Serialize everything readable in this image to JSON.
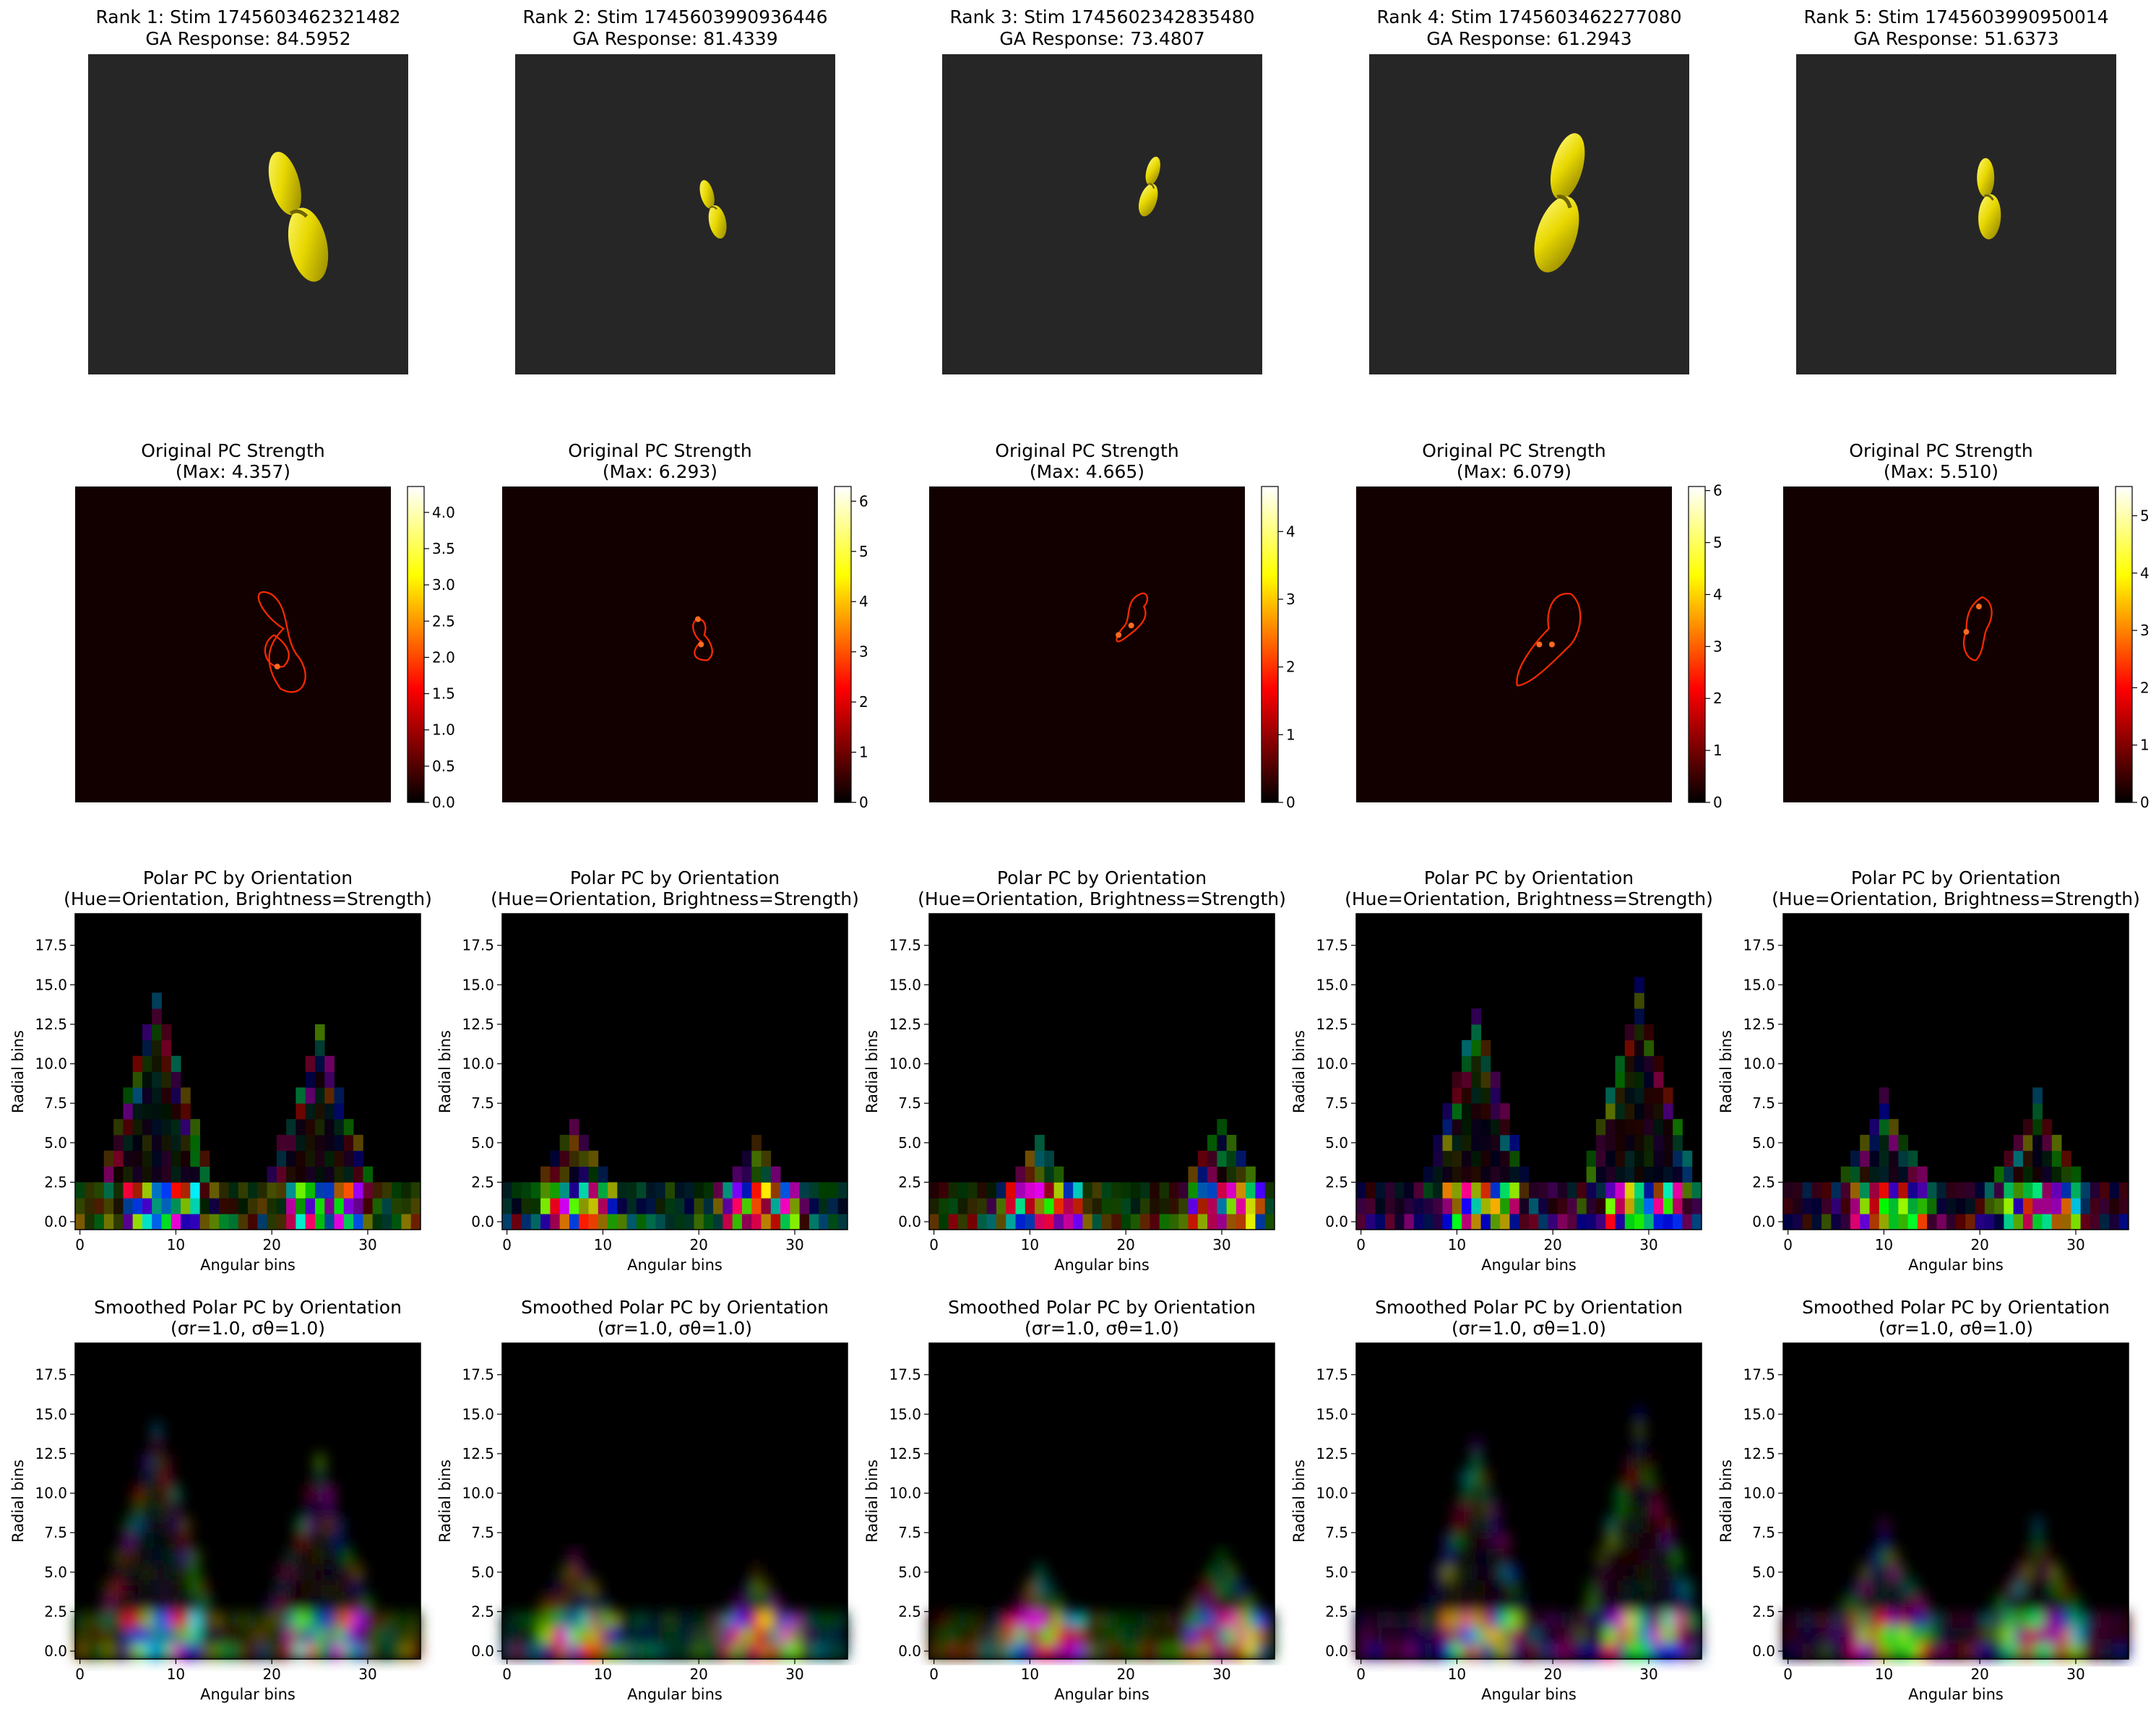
{
  "figure": {
    "panels": [
      {
        "rank_title": "Rank 1: Stim 1745603462321482",
        "response_title": "GA Response: 84.5952",
        "pc_title": "Original PC Strength",
        "pc_max_label": "(Max: 4.357)",
        "pc_max": 4.357
      },
      {
        "rank_title": "Rank 2: Stim 1745603990936446",
        "response_title": "GA Response: 81.4339",
        "pc_title": "Original PC Strength",
        "pc_max_label": "(Max: 6.293)",
        "pc_max": 6.293
      },
      {
        "rank_title": "Rank 3: Stim 1745602342835480",
        "response_title": "GA Response: 73.4807",
        "pc_title": "Original PC Strength",
        "pc_max_label": "(Max: 4.665)",
        "pc_max": 4.665
      },
      {
        "rank_title": "Rank 4: Stim 1745603462277080",
        "response_title": "GA Response: 61.2943",
        "pc_title": "Original PC Strength",
        "pc_max_label": "(Max: 6.079)",
        "pc_max": 6.079
      },
      {
        "rank_title": "Rank 5: Stim 1745603990950014",
        "response_title": "GA Response: 51.6373",
        "pc_title": "Original PC Strength",
        "pc_max_label": "(Max: 5.510)",
        "pc_max": 5.51
      }
    ],
    "polar_title_1": "Polar PC by Orientation",
    "polar_title_2": "(Hue=Orientation, Brightness=Strength)",
    "smooth_title_1": "Smoothed Polar PC by Orientation",
    "smooth_title_2": "(σr=1.0, σθ=1.0)",
    "xlabel": "Angular bins",
    "ylabel": "Radial bins",
    "colors": {
      "stim_background": "#262626",
      "stim_shape": "#d8c800",
      "pc_background": "#120000",
      "pc_contour": "#ff2a00"
    }
  },
  "chart_data": [
    {
      "type": "colorbar-image",
      "row": "Original PC Strength",
      "colormap": "hot",
      "colorbar_ticks": [
        [
          0.0,
          0.5,
          1.0,
          1.5,
          2.0,
          2.5,
          3.0,
          3.5,
          4.0
        ],
        [
          0,
          1,
          2,
          3,
          4,
          5,
          6
        ],
        [
          0,
          1,
          2,
          3,
          4
        ],
        [
          0,
          1,
          2,
          3,
          4,
          5,
          6
        ],
        [
          0,
          1,
          2,
          3,
          4,
          5
        ]
      ],
      "colorbar_tick_labels": [
        [
          "0.0",
          "0.5",
          "1.0",
          "1.5",
          "2.0",
          "2.5",
          "3.0",
          "3.5",
          "4.0"
        ],
        [
          "0",
          "1",
          "2",
          "3",
          "4",
          "5",
          "6"
        ],
        [
          "0",
          "1",
          "2",
          "3",
          "4"
        ],
        [
          "0",
          "1",
          "2",
          "3",
          "4",
          "5",
          "6"
        ],
        [
          "0",
          "1",
          "2",
          "3",
          "4",
          "5"
        ]
      ]
    },
    {
      "type": "heatmap",
      "row": "Polar PC by Orientation",
      "xlabel": "Angular bins",
      "ylabel": "Radial bins",
      "x_bins": 36,
      "y_bins": 20,
      "xlim": [
        -0.5,
        35.5
      ],
      "ylim": [
        -0.5,
        19.5
      ],
      "xticks": [
        0,
        10,
        20,
        30
      ],
      "xtick_labels": [
        "0",
        "10",
        "20",
        "30"
      ],
      "yticks": [
        0.0,
        2.5,
        5.0,
        7.5,
        10.0,
        12.5,
        15.0,
        17.5
      ],
      "ytick_labels": [
        "0.0",
        "2.5",
        "5.0",
        "7.5",
        "10.0",
        "12.5",
        "15.0",
        "17.5"
      ],
      "peaks": [
        [
          {
            "bin": 8,
            "height": 14
          },
          {
            "bin": 25,
            "height": 12
          }
        ],
        [
          {
            "bin": 7,
            "height": 6
          },
          {
            "bin": 26,
            "height": 5
          }
        ],
        [
          {
            "bin": 11,
            "height": 5
          },
          {
            "bin": 30,
            "height": 6
          }
        ],
        [
          {
            "bin": 12,
            "height": 13
          },
          {
            "bin": 29,
            "height": 15
          }
        ],
        [
          {
            "bin": 10,
            "height": 8
          },
          {
            "bin": 26,
            "height": 8
          }
        ]
      ]
    },
    {
      "type": "heatmap",
      "row": "Smoothed Polar PC by Orientation",
      "xlabel": "Angular bins",
      "ylabel": "Radial bins",
      "x_bins": 36,
      "y_bins": 20,
      "xlim": [
        -0.5,
        35.5
      ],
      "ylim": [
        -0.5,
        19.5
      ],
      "xticks": [
        0,
        10,
        20,
        30
      ],
      "xtick_labels": [
        "0",
        "10",
        "20",
        "30"
      ],
      "yticks": [
        0.0,
        2.5,
        5.0,
        7.5,
        10.0,
        12.5,
        15.0,
        17.5
      ],
      "ytick_labels": [
        "0.0",
        "2.5",
        "5.0",
        "7.5",
        "10.0",
        "12.5",
        "15.0",
        "17.5"
      ]
    }
  ]
}
